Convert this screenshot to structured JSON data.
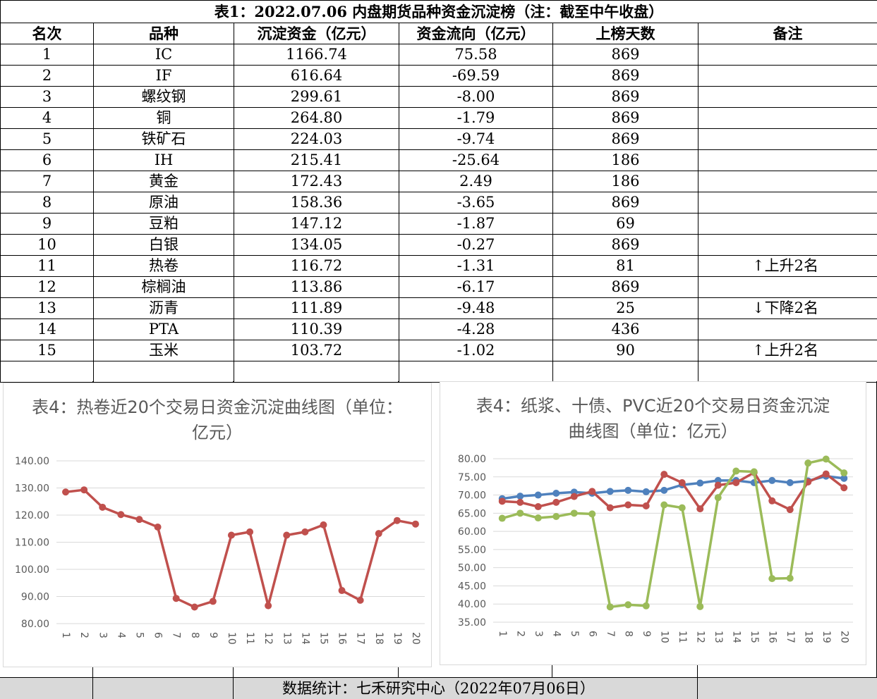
{
  "table": {
    "title": "表1：2022.07.06 内盘期货品种资金沉淀榜（注：截至中午收盘）",
    "headers": [
      "名次",
      "品种",
      "沉淀资金（亿元）",
      "资金流向（亿元）",
      "上榜天数",
      "备注"
    ],
    "rows": [
      [
        "1",
        "IC",
        "1166.74",
        "75.58",
        "869",
        ""
      ],
      [
        "2",
        "IF",
        "616.64",
        "-69.59",
        "869",
        ""
      ],
      [
        "3",
        "螺纹钢",
        "299.61",
        "-8.00",
        "869",
        ""
      ],
      [
        "4",
        "铜",
        "264.80",
        "-1.79",
        "869",
        ""
      ],
      [
        "5",
        "铁矿石",
        "224.03",
        "-9.74",
        "869",
        ""
      ],
      [
        "6",
        "IH",
        "215.41",
        "-25.64",
        "186",
        ""
      ],
      [
        "7",
        "黄金",
        "172.43",
        "2.49",
        "186",
        ""
      ],
      [
        "8",
        "原油",
        "158.36",
        "-3.65",
        "869",
        ""
      ],
      [
        "9",
        "豆粕",
        "147.12",
        "-1.87",
        "69",
        ""
      ],
      [
        "10",
        "白银",
        "134.05",
        "-0.27",
        "869",
        ""
      ],
      [
        "11",
        "热卷",
        "116.72",
        "-1.31",
        "81",
        "↑上升2名"
      ],
      [
        "12",
        "棕榈油",
        "113.86",
        "-6.17",
        "869",
        ""
      ],
      [
        "13",
        "沥青",
        "111.89",
        "-9.48",
        "25",
        "↓下降2名"
      ],
      [
        "14",
        "PTA",
        "110.39",
        "-4.28",
        "436",
        ""
      ],
      [
        "15",
        "玉米",
        "103.72",
        "-1.02",
        "90",
        "↑上升2名"
      ]
    ]
  },
  "footer": "数据统计：七禾研究中心（2022年07月06日）",
  "colors": {
    "red": "#c0504d",
    "blue": "#4f81bd",
    "green": "#9bbb59"
  },
  "chart_data": [
    {
      "type": "line",
      "title": "表4：热卷近20个交易日资金沉淀曲线图（单位：亿元）",
      "x": [
        "1",
        "2",
        "3",
        "4",
        "5",
        "6",
        "7",
        "8",
        "9",
        "10",
        "11",
        "12",
        "13",
        "14",
        "15",
        "16",
        "17",
        "18",
        "19",
        "20"
      ],
      "yticks": [
        "80.00",
        "90.00",
        "100.00",
        "110.00",
        "120.00",
        "130.00",
        "140.00"
      ],
      "ylim": [
        80,
        140
      ],
      "series": [
        {
          "color": "#c0504d",
          "values": [
            128.5,
            129.3,
            122.9,
            120.2,
            118.4,
            115.6,
            89.3,
            86.1,
            88.2,
            112.6,
            113.8,
            86.6,
            112.6,
            113.8,
            116.4,
            92.2,
            88.6,
            113.2,
            118.0,
            116.7
          ]
        }
      ]
    },
    {
      "type": "line",
      "title": "表4：纸浆、十债、PVC近20个交易日资金沉淀曲线图（单位：亿元）",
      "x": [
        "1",
        "2",
        "3",
        "4",
        "5",
        "6",
        "7",
        "8",
        "9",
        "10",
        "11",
        "12",
        "13",
        "14",
        "15",
        "16",
        "17",
        "18",
        "19",
        "20"
      ],
      "yticks": [
        "35.00",
        "40.00",
        "45.00",
        "50.00",
        "55.00",
        "60.00",
        "65.00",
        "70.00",
        "75.00",
        "80.00"
      ],
      "ylim": [
        35,
        80
      ],
      "series": [
        {
          "color": "#4f81bd",
          "values": [
            69.0,
            69.7,
            70.0,
            70.5,
            70.8,
            70.5,
            71.0,
            71.3,
            70.9,
            71.3,
            72.8,
            73.3,
            74.0,
            74.0,
            73.4,
            74.0,
            73.4,
            73.9,
            75.2,
            74.6
          ]
        },
        {
          "color": "#c0504d",
          "values": [
            68.3,
            68.0,
            66.8,
            68.0,
            69.6,
            71.0,
            66.5,
            67.3,
            67.0,
            75.7,
            73.4,
            66.2,
            72.7,
            73.4,
            76.2,
            68.4,
            66.0,
            73.6,
            75.8,
            72.0
          ]
        },
        {
          "color": "#9bbb59",
          "values": [
            63.6,
            65.0,
            63.7,
            64.1,
            65.0,
            64.8,
            39.2,
            39.8,
            39.5,
            67.3,
            66.5,
            39.3,
            69.3,
            76.6,
            76.4,
            47.0,
            47.1,
            78.8,
            79.9,
            76.1
          ]
        }
      ]
    }
  ]
}
